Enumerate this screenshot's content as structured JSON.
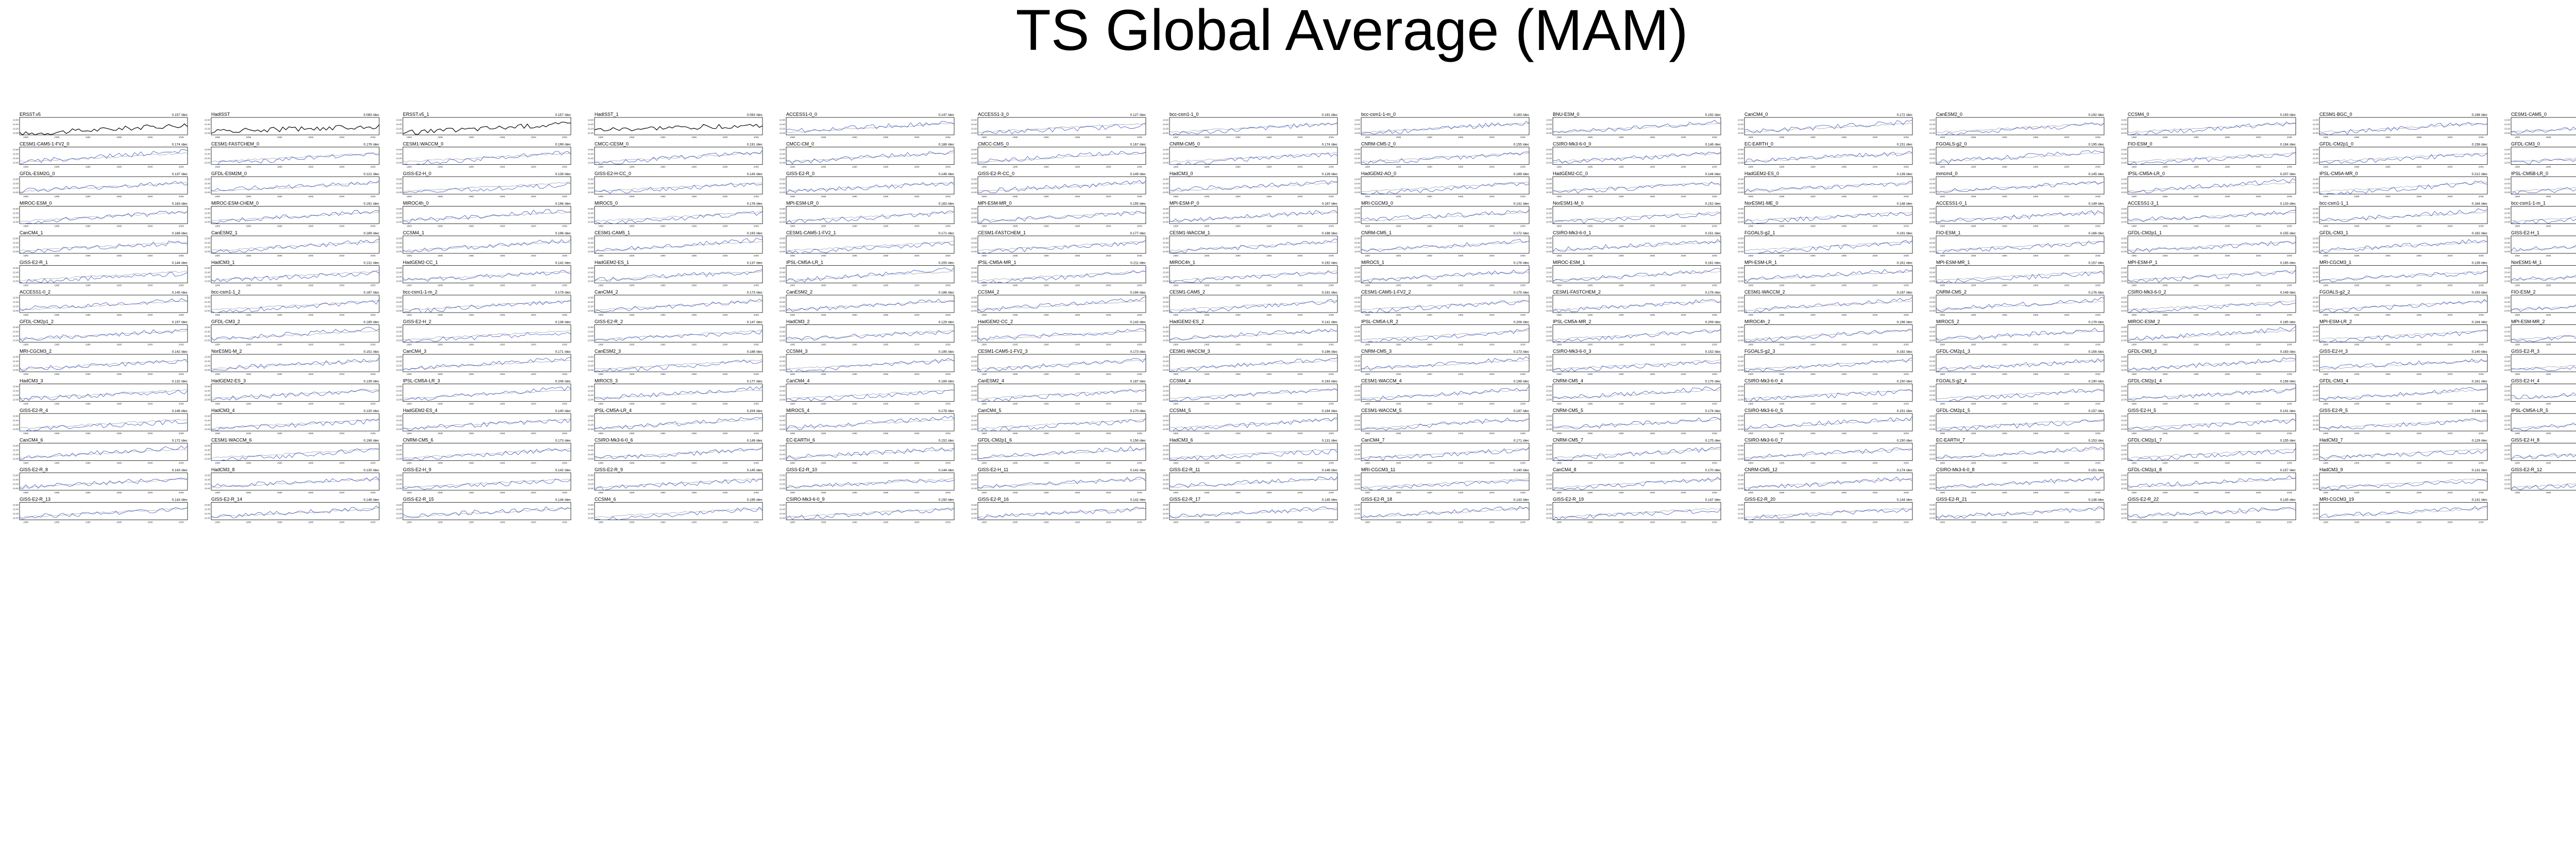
{
  "title": "TS Global Average (MAM)",
  "colors": {
    "observation_line": "#000000",
    "model_line": "#3a55c8",
    "reference_line": "#888888",
    "axis": "#000000",
    "text": "#000000"
  },
  "xticks": [
    "1980",
    "1985",
    "1990",
    "1995",
    "2000",
    "2005"
  ],
  "yticks": [
    "13.60",
    "13.40",
    "13.20",
    "13.00"
  ],
  "ylim": [
    12.9,
    13.7
  ],
  "chart_data": {
    "type": "line",
    "title": "TS Global Average (MAM)",
    "x_range": [
      1979,
      2006
    ],
    "ylim": [
      12.9,
      13.7
    ],
    "x_ticks": [
      "1980",
      "1985",
      "1990",
      "1995",
      "2000",
      "2005"
    ],
    "y_ticks": [
      "13.60",
      "13.40",
      "13.20",
      "13.00"
    ],
    "panels": [
      {
        "name": "ERSST.v5",
        "trend": "0.157 /dec"
      },
      {
        "name": "HadISST",
        "trend": "0.083 /dec"
      },
      {
        "name": "ERSST.v5_1",
        "trend": "0.157 /dec"
      },
      {
        "name": "HadISST_1",
        "trend": "0.083 /dec"
      },
      {
        "name": "ACCESS1-0_0",
        "trend": "0.147 /dec"
      },
      {
        "name": "ACCESS1-3_0",
        "trend": "0.127 /dec"
      },
      {
        "name": "bcc-csm1-1_0",
        "trend": "0.191 /dec"
      },
      {
        "name": "bcc-csm1-1-m_0",
        "trend": "0.183 /dec"
      },
      {
        "name": "BNU-ESM_0",
        "trend": "0.192 /dec"
      },
      {
        "name": "CanCM4_0",
        "trend": "0.172 /dec"
      },
      {
        "name": "CanESM2_0",
        "trend": "0.192 /dec"
      },
      {
        "name": "CCSM4_0",
        "trend": "0.193 /dec"
      },
      {
        "name": "CESM1-BGC_0",
        "trend": "0.198 /dec"
      },
      {
        "name": "CESM1-CAM5_0",
        "trend": "0.192 /dec"
      },
      {
        "name": "CESM1-CAM5-1-FV2_0",
        "trend": "0.174 /dec"
      },
      {
        "name": "CESM1-FASTCHEM_0",
        "trend": "0.176 /dec"
      },
      {
        "name": "CESM1-WACCM_0",
        "trend": "0.199 /dec"
      },
      {
        "name": "CMCC-CESM_0",
        "trend": "0.191 /dec"
      },
      {
        "name": "CMCC-CM_0",
        "trend": "0.188 /dec"
      },
      {
        "name": "CMCC-CMS_0",
        "trend": "0.167 /dec"
      },
      {
        "name": "CNRM-CM5_0",
        "trend": "0.174 /dec"
      },
      {
        "name": "CNRM-CM5-2_0",
        "trend": "0.155 /dec"
      },
      {
        "name": "CSIRO-Mk3-6-0_0",
        "trend": "0.146 /dec"
      },
      {
        "name": "EC-EARTH_0",
        "trend": "0.151 /dec"
      },
      {
        "name": "FGOALS-g2_0",
        "trend": "0.195 /dec"
      },
      {
        "name": "FIO-ESM_0",
        "trend": "0.164 /dec"
      },
      {
        "name": "GFDL-CM2p1_0",
        "trend": "0.158 /dec"
      },
      {
        "name": "GFDL-CM3_0",
        "trend": "0.184 /dec"
      },
      {
        "name": "GFDL-ESM2G_0",
        "trend": "0.137 /dec"
      },
      {
        "name": "GFDL-ESM2M_0",
        "trend": "0.121 /dec"
      },
      {
        "name": "GISS-E2-H_0",
        "trend": "0.139 /dec"
      },
      {
        "name": "GISS-E2-H-CC_0",
        "trend": "0.143 /dec"
      },
      {
        "name": "GISS-E2-R_0",
        "trend": "0.146 /dec"
      },
      {
        "name": "GISS-E2-R-CC_0",
        "trend": "0.149 /dec"
      },
      {
        "name": "HadCM3_0",
        "trend": "0.128 /dec"
      },
      {
        "name": "HadGEM2-AO_0",
        "trend": "0.189 /dec"
      },
      {
        "name": "HadGEM2-CC_0",
        "trend": "0.144 /dec"
      },
      {
        "name": "HadGEM2-ES_0",
        "trend": "0.139 /dec"
      },
      {
        "name": "inmcm4_0",
        "trend": "0.145 /dec"
      },
      {
        "name": "IPSL-CM5A-LR_0",
        "trend": "0.207 /dec"
      },
      {
        "name": "IPSL-CM5A-MR_0",
        "trend": "0.212 /dec"
      },
      {
        "name": "IPSL-CM5B-LR_0",
        "trend": "0.184 /dec"
      },
      {
        "name": "MIROC-ESM_0",
        "trend": "0.183 /dec"
      },
      {
        "name": "MIROC-ESM-CHEM_0",
        "trend": "0.191 /dec"
      },
      {
        "name": "MIROC4h_0",
        "trend": "0.194 /dec"
      },
      {
        "name": "MIROC5_0",
        "trend": "0.178 /dec"
      },
      {
        "name": "MPI-ESM-LR_0",
        "trend": "0.163 /dec"
      },
      {
        "name": "MPI-ESM-MR_0",
        "trend": "0.155 /dec"
      },
      {
        "name": "MPI-ESM-P_0",
        "trend": "0.167 /dec"
      },
      {
        "name": "MRI-CGCM3_0",
        "trend": "0.141 /dec"
      },
      {
        "name": "NorESM1-M_0",
        "trend": "0.152 /dec"
      },
      {
        "name": "NorESM1-ME_0",
        "trend": "0.148 /dec"
      },
      {
        "name": "ACCESS1-0_1",
        "trend": "0.149 /dec"
      },
      {
        "name": "ACCESS1-3_1",
        "trend": "0.133 /dec"
      },
      {
        "name": "bcc-csm1-1_1",
        "trend": "0.184 /dec"
      },
      {
        "name": "bcc-csm1-1-m_1",
        "trend": "0.182 /dec"
      },
      {
        "name": "CanCM4_1",
        "trend": "0.168 /dec"
      },
      {
        "name": "CanESM2_1",
        "trend": "0.189 /dec"
      },
      {
        "name": "CCSM4_1",
        "trend": "0.196 /dec"
      },
      {
        "name": "CESM1-CAM5_1",
        "trend": "0.193 /dec"
      },
      {
        "name": "CESM1-CAM5-1-FV2_1",
        "trend": "0.171 /dec"
      },
      {
        "name": "CESM1-FASTCHEM_1",
        "trend": "0.177 /dec"
      },
      {
        "name": "CESM1-WACCM_1",
        "trend": "0.198 /dec"
      },
      {
        "name": "CNRM-CM5_1",
        "trend": "0.172 /dec"
      },
      {
        "name": "CSIRO-Mk3-6-0_1",
        "trend": "0.151 /dec"
      },
      {
        "name": "FGOALS-g2_1",
        "trend": "0.191 /dec"
      },
      {
        "name": "FIO-ESM_1",
        "trend": "0.166 /dec"
      },
      {
        "name": "GFDL-CM2p1_1",
        "trend": "0.155 /dec"
      },
      {
        "name": "GFDL-CM3_1",
        "trend": "0.182 /dec"
      },
      {
        "name": "GISS-E2-H_1",
        "trend": "0.141 /dec"
      },
      {
        "name": "GISS-E2-R_1",
        "trend": "0.144 /dec"
      },
      {
        "name": "HadCM3_1",
        "trend": "0.131 /dec"
      },
      {
        "name": "HadGEM2-CC_1",
        "trend": "0.142 /dec"
      },
      {
        "name": "HadGEM2-ES_1",
        "trend": "0.137 /dec"
      },
      {
        "name": "IPSL-CM5A-LR_1",
        "trend": "0.205 /dec"
      },
      {
        "name": "IPSL-CM5A-MR_1",
        "trend": "0.211 /dec"
      },
      {
        "name": "MIROC4h_1",
        "trend": "0.192 /dec"
      },
      {
        "name": "MIROC5_1",
        "trend": "0.176 /dec"
      },
      {
        "name": "MIROC-ESM_1",
        "trend": "0.181 /dec"
      },
      {
        "name": "MPI-ESM-LR_1",
        "trend": "0.161 /dec"
      },
      {
        "name": "MPI-ESM-MR_1",
        "trend": "0.157 /dec"
      },
      {
        "name": "MPI-ESM-P_1",
        "trend": "0.165 /dec"
      },
      {
        "name": "MRI-CGCM3_1",
        "trend": "0.139 /dec"
      },
      {
        "name": "NorESM1-M_1",
        "trend": "0.154 /dec"
      },
      {
        "name": "ACCESS1-0_2",
        "trend": "0.145 /dec"
      },
      {
        "name": "bcc-csm1-1_2",
        "trend": "0.187 /dec"
      },
      {
        "name": "bcc-csm1-1-m_2",
        "trend": "0.179 /dec"
      },
      {
        "name": "CanCM4_2",
        "trend": "0.173 /dec"
      },
      {
        "name": "CanESM2_2",
        "trend": "0.186 /dec"
      },
      {
        "name": "CCSM4_2",
        "trend": "0.194 /dec"
      },
      {
        "name": "CESM1-CAM5_2",
        "trend": "0.191 /dec"
      },
      {
        "name": "CESM1-CAM5-1-FV2_2",
        "trend": "0.175 /dec"
      },
      {
        "name": "CESM1-FASTCHEM_2",
        "trend": "0.178 /dec"
      },
      {
        "name": "CESM1-WACCM_2",
        "trend": "0.197 /dec"
      },
      {
        "name": "CNRM-CM5_2",
        "trend": "0.176 /dec"
      },
      {
        "name": "CSIRO-Mk3-6-0_2",
        "trend": "0.149 /dec"
      },
      {
        "name": "FGOALS-g2_2",
        "trend": "0.193 /dec"
      },
      {
        "name": "FIO-ESM_2",
        "trend": "0.162 /dec"
      },
      {
        "name": "GFDL-CM2p1_2",
        "trend": "0.157 /dec"
      },
      {
        "name": "GFDL-CM3_2",
        "trend": "0.185 /dec"
      },
      {
        "name": "GISS-E2-H_2",
        "trend": "0.138 /dec"
      },
      {
        "name": "GISS-E2-R_2",
        "trend": "0.147 /dec"
      },
      {
        "name": "HadCM3_2",
        "trend": "0.129 /dec"
      },
      {
        "name": "HadGEM2-CC_2",
        "trend": "0.143 /dec"
      },
      {
        "name": "HadGEM2-ES_2",
        "trend": "0.141 /dec"
      },
      {
        "name": "IPSL-CM5A-LR_2",
        "trend": "0.208 /dec"
      },
      {
        "name": "IPSL-CM5A-MR_2",
        "trend": "0.209 /dec"
      },
      {
        "name": "MIROC4h_2",
        "trend": "0.196 /dec"
      },
      {
        "name": "MIROC5_2",
        "trend": "0.179 /dec"
      },
      {
        "name": "MIROC-ESM_2",
        "trend": "0.185 /dec"
      },
      {
        "name": "MPI-ESM-LR_2",
        "trend": "0.164 /dec"
      },
      {
        "name": "MPI-ESM-MR_2",
        "trend": "0.158 /dec"
      },
      {
        "name": "MRI-CGCM3_2",
        "trend": "0.142 /dec"
      },
      {
        "name": "NorESM1-M_2",
        "trend": "0.151 /dec"
      },
      {
        "name": "CanCM4_3",
        "trend": "0.171 /dec"
      },
      {
        "name": "CanESM2_3",
        "trend": "0.188 /dec"
      },
      {
        "name": "CCSM4_3",
        "trend": "0.195 /dec"
      },
      {
        "name": "CESM1-CAM5-1-FV2_3",
        "trend": "0.173 /dec"
      },
      {
        "name": "CESM1-WACCM_3",
        "trend": "0.196 /dec"
      },
      {
        "name": "CNRM-CM5_3",
        "trend": "0.173 /dec"
      },
      {
        "name": "CSIRO-Mk3-6-0_3",
        "trend": "0.152 /dec"
      },
      {
        "name": "FGOALS-g2_3",
        "trend": "0.192 /dec"
      },
      {
        "name": "GFDL-CM2p1_3",
        "trend": "0.156 /dec"
      },
      {
        "name": "GFDL-CM3_3",
        "trend": "0.183 /dec"
      },
      {
        "name": "GISS-E2-H_3",
        "trend": "0.140 /dec"
      },
      {
        "name": "GISS-E2-R_3",
        "trend": "0.145 /dec"
      },
      {
        "name": "HadCM3_3",
        "trend": "0.132 /dec"
      },
      {
        "name": "HadGEM2-ES_3",
        "trend": "0.139 /dec"
      },
      {
        "name": "IPSL-CM5A-LR_3",
        "trend": "0.206 /dec"
      },
      {
        "name": "MIROC5_3",
        "trend": "0.177 /dec"
      },
      {
        "name": "CanCM4_4",
        "trend": "0.169 /dec"
      },
      {
        "name": "CanESM2_4",
        "trend": "0.187 /dec"
      },
      {
        "name": "CCSM4_4",
        "trend": "0.193 /dec"
      },
      {
        "name": "CESM1-WACCM_4",
        "trend": "0.198 /dec"
      },
      {
        "name": "CNRM-CM5_4",
        "trend": "0.175 /dec"
      },
      {
        "name": "CSIRO-Mk3-6-0_4",
        "trend": "0.150 /dec"
      },
      {
        "name": "FGOALS-g2_4",
        "trend": "0.190 /dec"
      },
      {
        "name": "GFDL-CM2p1_4",
        "trend": "0.158 /dec"
      },
      {
        "name": "GFDL-CM3_4",
        "trend": "0.181 /dec"
      },
      {
        "name": "GISS-E2-H_4",
        "trend": "0.139 /dec"
      },
      {
        "name": "GISS-E2-R_4",
        "trend": "0.146 /dec"
      },
      {
        "name": "HadCM3_4",
        "trend": "0.130 /dec"
      },
      {
        "name": "HadGEM2-ES_4",
        "trend": "0.140 /dec"
      },
      {
        "name": "IPSL-CM5A-LR_4",
        "trend": "0.204 /dec"
      },
      {
        "name": "MIROC5_4",
        "trend": "0.178 /dec"
      },
      {
        "name": "CanCM4_5",
        "trend": "0.170 /dec"
      },
      {
        "name": "CCSM4_5",
        "trend": "0.194 /dec"
      },
      {
        "name": "CESM1-WACCM_5",
        "trend": "0.197 /dec"
      },
      {
        "name": "CNRM-CM5_5",
        "trend": "0.174 /dec"
      },
      {
        "name": "CSIRO-Mk3-6-0_5",
        "trend": "0.151 /dec"
      },
      {
        "name": "GFDL-CM2p1_5",
        "trend": "0.157 /dec"
      },
      {
        "name": "GISS-E2-H_5",
        "trend": "0.141 /dec"
      },
      {
        "name": "GISS-E2-R_5",
        "trend": "0.144 /dec"
      },
      {
        "name": "IPSL-CM5A-LR_5",
        "trend": "0.207 /dec"
      },
      {
        "name": "CanCM4_6",
        "trend": "0.172 /dec"
      },
      {
        "name": "CESM1-WACCM_6",
        "trend": "0.196 /dec"
      },
      {
        "name": "CNRM-CM5_6",
        "trend": "0.173 /dec"
      },
      {
        "name": "CSIRO-Mk3-6-0_6",
        "trend": "0.149 /dec"
      },
      {
        "name": "EC-EARTH_6",
        "trend": "0.152 /dec"
      },
      {
        "name": "GFDL-CM2p1_6",
        "trend": "0.156 /dec"
      },
      {
        "name": "HadCM3_6",
        "trend": "0.131 /dec"
      },
      {
        "name": "CanCM4_7",
        "trend": "0.171 /dec"
      },
      {
        "name": "CNRM-CM5_7",
        "trend": "0.175 /dec"
      },
      {
        "name": "CSIRO-Mk3-6-0_7",
        "trend": "0.150 /dec"
      },
      {
        "name": "EC-EARTH_7",
        "trend": "0.153 /dec"
      },
      {
        "name": "GFDL-CM2p1_7",
        "trend": "0.155 /dec"
      },
      {
        "name": "HadCM3_7",
        "trend": "0.129 /dec"
      },
      {
        "name": "GISS-E2-H_8",
        "trend": "0.140 /dec"
      },
      {
        "name": "GISS-E2-R_8",
        "trend": "0.143 /dec"
      },
      {
        "name": "HadCM3_8",
        "trend": "0.130 /dec"
      },
      {
        "name": "GISS-E2-H_9",
        "trend": "0.142 /dec"
      },
      {
        "name": "GISS-E2-R_9",
        "trend": "0.145 /dec"
      },
      {
        "name": "GISS-E2-R_10",
        "trend": "0.144 /dec"
      },
      {
        "name": "GISS-E2-H_11",
        "trend": "0.141 /dec"
      },
      {
        "name": "GISS-E2-R_11",
        "trend": "0.146 /dec"
      },
      {
        "name": "MRI-CGCM3_11",
        "trend": "0.140 /dec"
      },
      {
        "name": "CanCM4_8",
        "trend": "0.170 /dec"
      },
      {
        "name": "CNRM-CM5_12",
        "trend": "0.174 /dec"
      },
      {
        "name": "CSIRO-Mk3-6-0_8",
        "trend": "0.151 /dec"
      },
      {
        "name": "GFDL-CM2p1_8",
        "trend": "0.157 /dec"
      },
      {
        "name": "HadCM3_9",
        "trend": "0.131 /dec"
      },
      {
        "name": "GISS-E2-R_12",
        "trend": "0.145 /dec"
      },
      {
        "name": "GISS-E2-R_13",
        "trend": "0.143 /dec"
      },
      {
        "name": "GISS-E2-R_14",
        "trend": "0.146 /dec"
      },
      {
        "name": "GISS-E2-R_15",
        "trend": "0.144 /dec"
      },
      {
        "name": "CCSM4_6",
        "trend": "0.195 /dec"
      },
      {
        "name": "CSIRO-Mk3-6-0_9",
        "trend": "0.150 /dec"
      },
      {
        "name": "GISS-E2-R_16",
        "trend": "0.142 /dec"
      },
      {
        "name": "GISS-E2-R_17",
        "trend": "0.145 /dec"
      },
      {
        "name": "GISS-E2-R_18",
        "trend": "0.143 /dec"
      },
      {
        "name": "GISS-E2-R_19",
        "trend": "0.147 /dec"
      },
      {
        "name": "GISS-E2-R_20",
        "trend": "0.144 /dec"
      },
      {
        "name": "GISS-E2-R_21",
        "trend": "0.146 /dec"
      },
      {
        "name": "GISS-E2-R_22",
        "trend": "0.145 /dec"
      },
      {
        "name": "MRI-CGCM3_19",
        "trend": "0.141 /dec"
      }
    ]
  }
}
